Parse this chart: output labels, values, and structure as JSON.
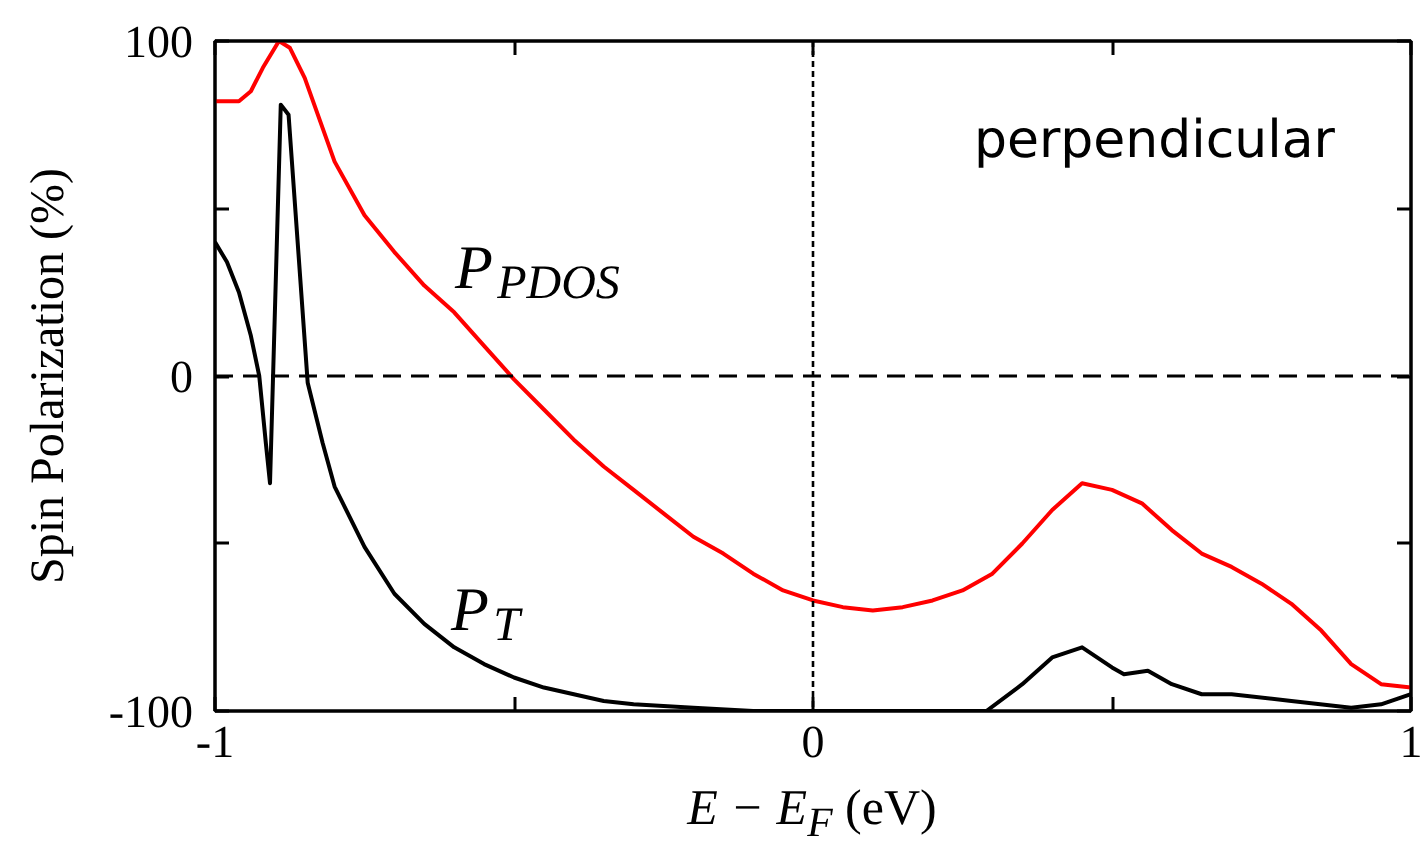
{
  "chart_data": {
    "type": "line",
    "xlabel": "E − E$_{F}$ (eV)",
    "ylabel": "Spin Polarization (%)",
    "annotations": [
      "perpendicular"
    ],
    "xlim": [
      -1,
      1
    ],
    "ylim": [
      -100,
      100
    ],
    "xticks": [
      -1,
      {
        "value": -0.5,
        "label": null
      },
      0,
      {
        "value": 0.5,
        "label": null
      },
      1
    ],
    "yticks": [
      -100,
      {
        "value": -50,
        "label": null
      },
      0,
      {
        "value": 50,
        "label": null
      },
      100
    ],
    "grid": false,
    "legend": false,
    "ref_lines": [
      {
        "axis": "x",
        "value": 0,
        "color": "#000000",
        "line_style": "dotted"
      },
      {
        "axis": "y",
        "value": 0,
        "color": "#000000",
        "line_style": "dashed"
      }
    ],
    "series": [
      {
        "name": "P$_{PDOS}$",
        "color": "#ff0000",
        "x": [
          -1,
          -0.96,
          -0.94,
          -0.92,
          -0.893,
          -0.875,
          -0.85,
          -0.8,
          -0.75,
          -0.7,
          -0.65,
          -0.6,
          -0.55,
          -0.5,
          -0.45,
          -0.4,
          -0.35,
          -0.3,
          -0.25,
          -0.2,
          -0.15,
          -0.1,
          -0.05,
          0,
          0.05,
          0.1,
          0.15,
          0.2,
          0.25,
          0.3,
          0.35,
          0.4,
          0.45,
          0.5,
          0.55,
          0.6,
          0.65,
          0.7,
          0.75,
          0.8,
          0.85,
          0.9,
          0.95,
          1
        ],
        "values": [
          82,
          82,
          85,
          92,
          100,
          98,
          89,
          64,
          48,
          37,
          27,
          19,
          9,
          -1,
          -10,
          -19,
          -27,
          -34,
          -41,
          -48,
          -53,
          -59,
          -64,
          -67,
          -69,
          -70,
          -69,
          -67,
          -64,
          -59,
          -50,
          -40,
          -32,
          -34,
          -38,
          -46,
          -53,
          -57,
          -62,
          -68,
          -76,
          -86,
          -92,
          -93
        ]
      },
      {
        "name": "P$_{T}$",
        "color": "#000000",
        "x": [
          -1,
          -0.98,
          -0.96,
          -0.94,
          -0.926,
          -0.915,
          -0.908,
          -0.89,
          -0.877,
          -0.845,
          -0.82,
          -0.8,
          -0.75,
          -0.7,
          -0.65,
          -0.6,
          -0.55,
          -0.5,
          -0.45,
          -0.4,
          -0.35,
          -0.3,
          -0.2,
          -0.1,
          0,
          0.1,
          0.2,
          0.29,
          0.35,
          0.4,
          0.45,
          0.5,
          0.52,
          0.56,
          0.6,
          0.65,
          0.7,
          0.8,
          0.9,
          0.95,
          1
        ],
        "values": [
          40,
          34,
          25,
          12,
          0,
          -20,
          -32,
          81,
          78,
          -2,
          -20,
          -33,
          -51,
          -65,
          -74,
          -81,
          -86,
          -90,
          -93,
          -95,
          -97,
          -98,
          -99,
          -100,
          -100,
          -100,
          -100,
          -100,
          -92,
          -84,
          -81,
          -87,
          -89,
          -88,
          -92,
          -95,
          -95,
          -97,
          -99,
          -98,
          -95
        ]
      }
    ]
  }
}
